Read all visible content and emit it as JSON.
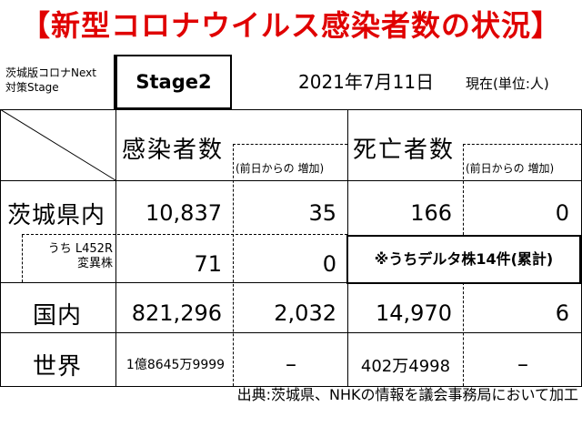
{
  "title": "【新型コロナウイルス感染者数の状況】",
  "stage": {
    "label_line1": "茨城版コロナNext",
    "label_line2": "対策Stage",
    "value": "Stage2"
  },
  "date": {
    "text": "2021年7月11日",
    "suffix": "現在(単位:人)"
  },
  "headers": {
    "infected": "感染者数",
    "infected_change": "(前日からの 増加)",
    "deaths": "死亡者数",
    "deaths_change": "(前日からの 増加)"
  },
  "rows": {
    "ibaraki": {
      "label": "茨城県内",
      "infected": "10,837",
      "infected_change": "35",
      "deaths": "166",
      "deaths_change": "0"
    },
    "variant": {
      "label_line1": "うち L452R",
      "label_line2": "変異株",
      "infected": "71",
      "infected_change": "0",
      "note": "※うちデルタ株14件(累計)"
    },
    "national": {
      "label": "国内",
      "infected": "821,296",
      "infected_change": "2,032",
      "deaths": "14,970",
      "deaths_change": "6"
    },
    "world": {
      "label": "世界",
      "infected": "1億8645万9999",
      "infected_change": "–",
      "deaths": "402万4998",
      "deaths_change": "–"
    }
  },
  "source": "出典:茨城県、NHKの情報を議会事務局において加工",
  "colors": {
    "title": "#e00000",
    "lines": "#000000"
  }
}
